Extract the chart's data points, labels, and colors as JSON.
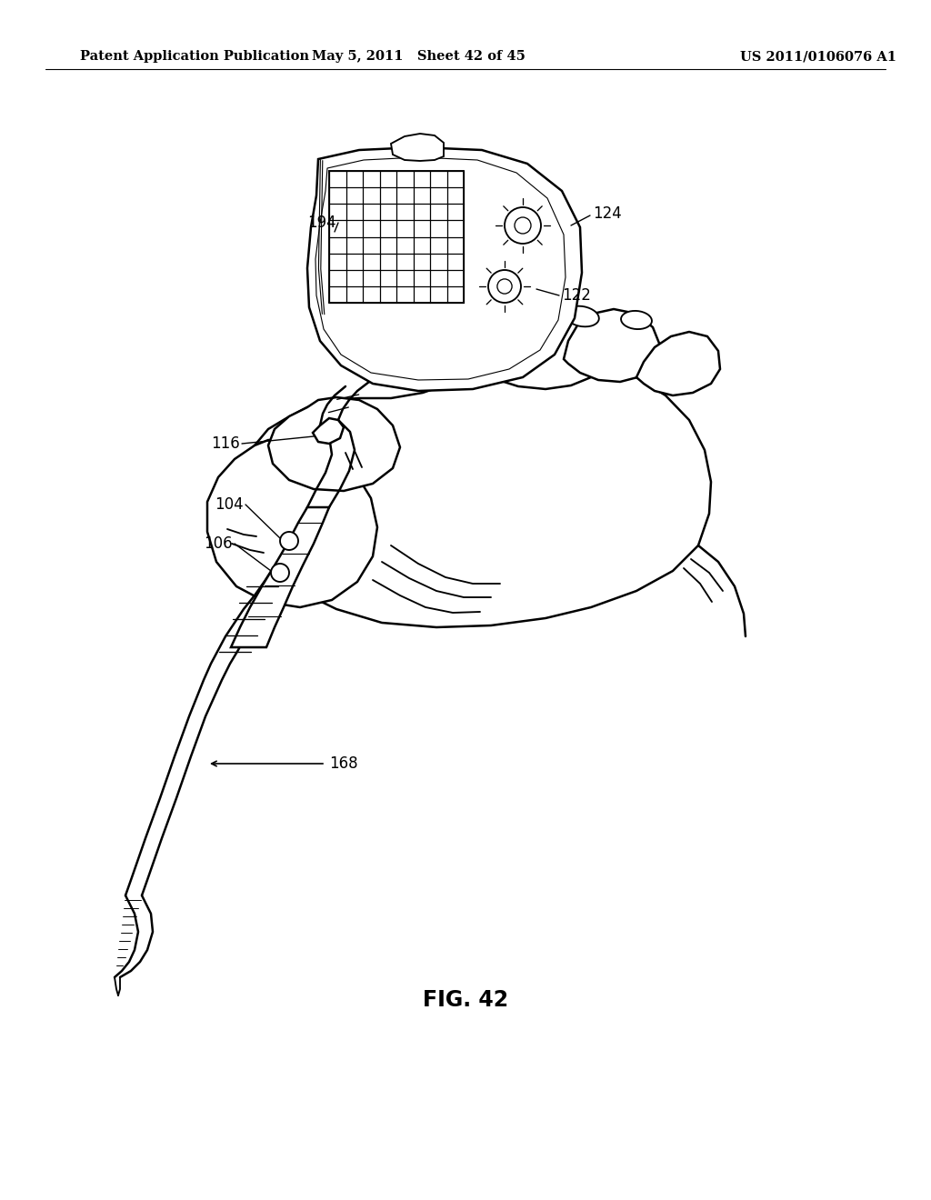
{
  "background_color": "#ffffff",
  "header_left": "Patent Application Publication",
  "header_mid": "May 5, 2011   Sheet 42 of 45",
  "header_right": "US 2011/0106076 A1",
  "figure_label": "FIG. 42",
  "line_color": "#000000",
  "line_width": 1.8,
  "header_fontsize": 10.5,
  "label_fontsize": 12,
  "fig_label_fontsize": 17
}
